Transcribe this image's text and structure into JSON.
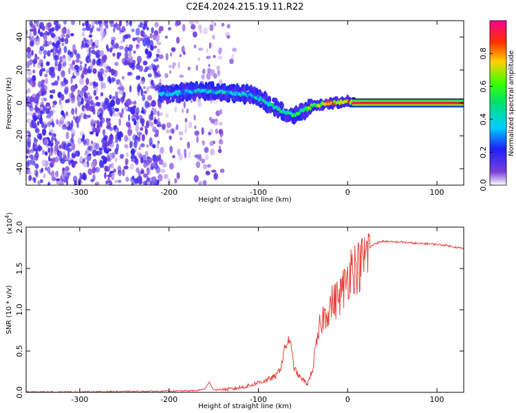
{
  "title": "C2E4.2024.215.19.11.R22",
  "chart_data": [
    {
      "type": "heatmap",
      "xlabel": "Height of straight line (km)",
      "ylabel": "Frequency (Hz)",
      "xlim": [
        -360,
        130
      ],
      "ylim": [
        -50,
        50
      ],
      "x_ticks": [
        -300,
        -200,
        -100,
        0,
        100
      ],
      "y_ticks": [
        -40,
        -20,
        0,
        20,
        40
      ],
      "grid": false,
      "colorbar": {
        "label": "Normalized spectral amplitude",
        "range": [
          0,
          1
        ],
        "ticks": [
          0.0,
          0.2,
          0.4,
          0.6,
          0.8
        ],
        "colormap": "rainbow (purple to red to pink)"
      },
      "signal_trace": {
        "x": [
          -210,
          -190,
          -170,
          -150,
          -130,
          -110,
          -100,
          -90,
          -80,
          -70,
          -60,
          -50,
          -40,
          -30,
          -20,
          -10,
          0,
          10,
          130
        ],
        "frequency": [
          5,
          6,
          7,
          7,
          6,
          5,
          3,
          0,
          -3,
          -6,
          -7,
          -5,
          -2,
          -1,
          0,
          0,
          1,
          0,
          0
        ],
        "amplitude": [
          0.35,
          0.4,
          0.4,
          0.45,
          0.45,
          0.45,
          0.45,
          0.5,
          0.5,
          0.55,
          0.6,
          0.65,
          0.7,
          0.75,
          0.85,
          0.85,
          0.9,
          0.95,
          0.95
        ]
      },
      "noise_region_x": [
        -360,
        -140
      ]
    },
    {
      "type": "line",
      "xlabel": "Height of straight line (km)",
      "ylabel": "SNR (10 * v/v)",
      "y_scale_label": "(x10",
      "y_scale_exponent": "4",
      "y_scale_close": ")",
      "xlim": [
        -360,
        130
      ],
      "ylim": [
        0,
        2.0
      ],
      "x_ticks": [
        -300,
        -200,
        -100,
        0,
        100
      ],
      "y_ticks": [
        0.0,
        0.5,
        1.0,
        1.5,
        2.0
      ],
      "grid": false,
      "series": [
        {
          "color": "#e8403a",
          "x": [
            -360,
            -300,
            -250,
            -200,
            -170,
            -160,
            -155,
            -150,
            -130,
            -110,
            -100,
            -90,
            -80,
            -75,
            -70,
            -65,
            -60,
            -55,
            -50,
            -45,
            -40,
            -35,
            -30,
            -25,
            -20,
            -15,
            -10,
            -5,
            0,
            5,
            10,
            15,
            20,
            25,
            30,
            40,
            50,
            60,
            70,
            80,
            90,
            100,
            110,
            120,
            130
          ],
          "values": [
            0.005,
            0.005,
            0.01,
            0.015,
            0.02,
            0.04,
            0.12,
            0.03,
            0.04,
            0.08,
            0.12,
            0.15,
            0.2,
            0.3,
            0.55,
            0.65,
            0.3,
            0.2,
            0.15,
            0.1,
            0.25,
            0.55,
            0.85,
            0.95,
            1.05,
            1.1,
            1.15,
            1.25,
            1.4,
            1.55,
            1.5,
            1.55,
            1.65,
            1.75,
            1.8,
            1.83,
            1.82,
            1.82,
            1.81,
            1.8,
            1.8,
            1.79,
            1.78,
            1.76,
            1.74
          ]
        }
      ]
    }
  ]
}
